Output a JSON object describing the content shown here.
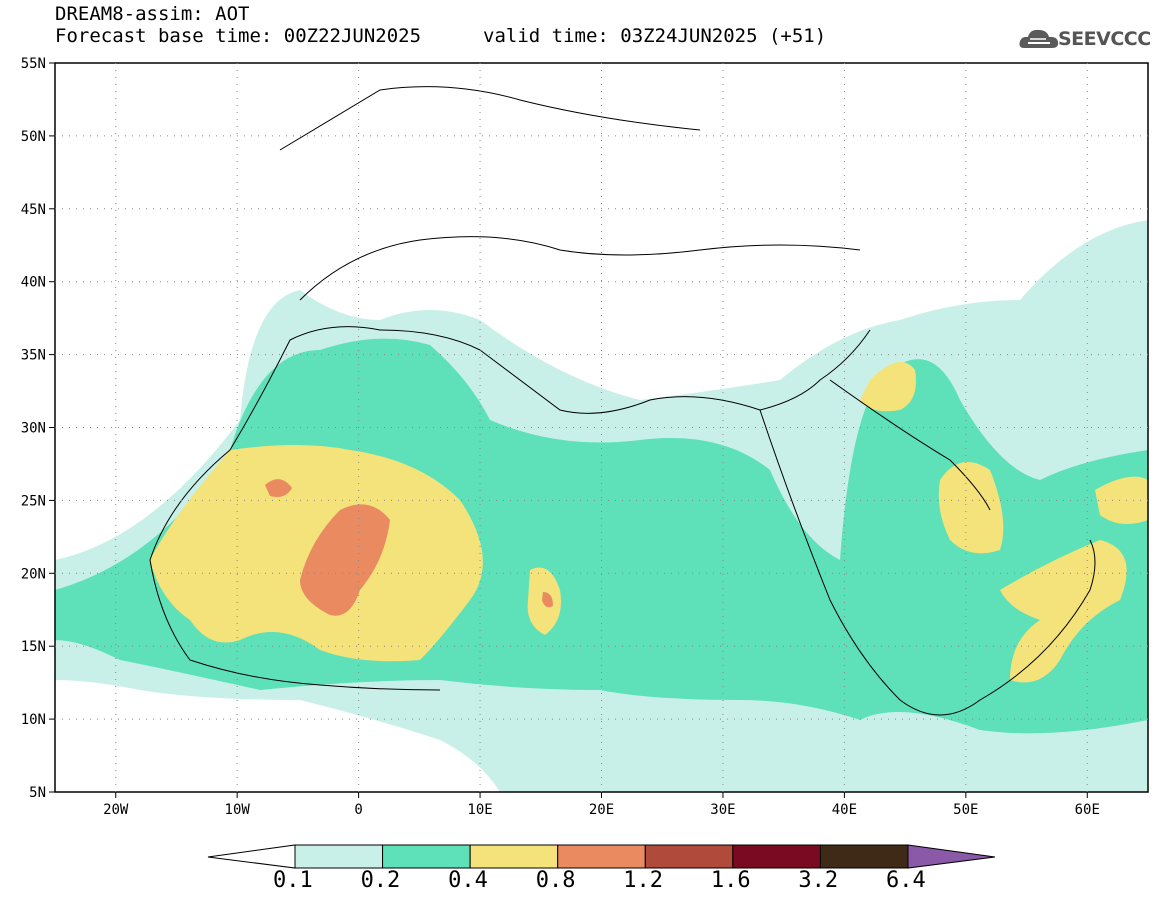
{
  "header": {
    "line1": "DREAM8-assim: AOT",
    "line2_left": "Forecast base time: 00Z22JUN2025",
    "line2_right": "valid time: 03Z24JUN2025 (+51)"
  },
  "logo": {
    "text": "SEEVCCC",
    "icon": "cloud-icon"
  },
  "map": {
    "lon_range": [
      -25,
      65
    ],
    "lat_range": [
      5,
      55
    ],
    "lat_labels": [
      "55N",
      "50N",
      "45N",
      "40N",
      "35N",
      "30N",
      "25N",
      "20N",
      "15N",
      "10N",
      "5N"
    ],
    "lon_labels": [
      "20W",
      "10W",
      "0",
      "10E",
      "20E",
      "30E",
      "40E",
      "50E",
      "60E"
    ]
  },
  "colorbar": {
    "labels": [
      "0.1",
      "0.2",
      "0.4",
      "0.8",
      "1.2",
      "1.6",
      "3.2",
      "6.4"
    ],
    "colors": [
      "#c8f0e8",
      "#5ee0b8",
      "#f4e27a",
      "#e98a60",
      "#b04a3a",
      "#7a0a22",
      "#3e2a16",
      "#8a5aa8"
    ]
  }
}
